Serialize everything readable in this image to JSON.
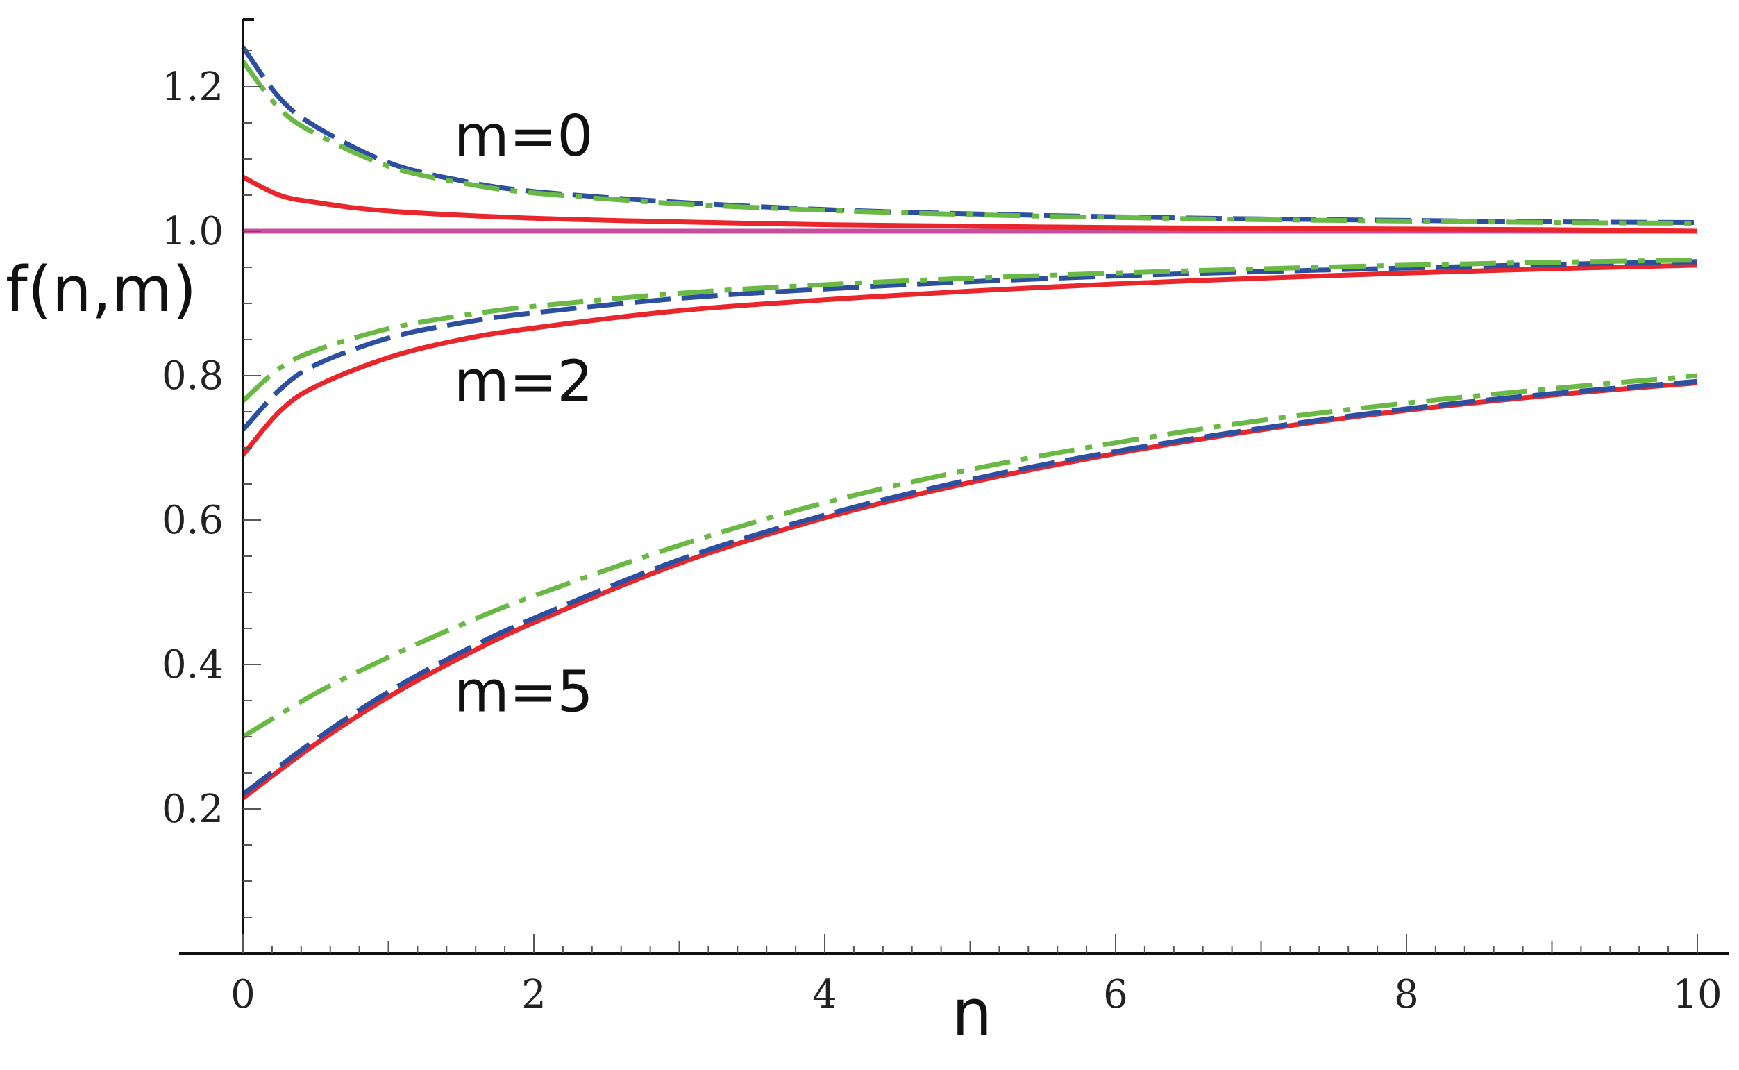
{
  "chart_data": {
    "type": "line",
    "xlabel": "n",
    "ylabel": "f(n,m)",
    "xlim": [
      0,
      10
    ],
    "ylim": [
      0,
      1.28
    ],
    "xticks": [
      "0",
      "2",
      "4",
      "6",
      "8",
      "10"
    ],
    "yticks": [
      "0.2",
      "0.4",
      "0.6",
      "0.8",
      "1.0",
      "1.2"
    ],
    "annotations": [
      {
        "text": "m=0",
        "x": 1.45,
        "y": 1.105
      },
      {
        "text": "m=2",
        "x": 1.45,
        "y": 0.765
      },
      {
        "text": "m=5",
        "x": 1.45,
        "y": 0.335
      }
    ],
    "colors": {
      "red": "#e8262b",
      "blue": "#2c4fa0",
      "green": "#6ab945",
      "magenta": "#c64f9d"
    },
    "series": [
      {
        "group": "m=0",
        "color": "#c64f9d",
        "style": "solid",
        "x": [
          0,
          10
        ],
        "y": [
          1.0,
          1.0
        ]
      },
      {
        "group": "m=0",
        "color": "#e8262b",
        "style": "solid",
        "x": [
          0,
          0.25,
          0.5,
          1,
          2,
          3,
          4,
          5,
          6,
          7,
          8,
          9,
          10
        ],
        "y": [
          1.075,
          1.05,
          1.04,
          1.028,
          1.018,
          1.013,
          1.009,
          1.007,
          1.005,
          1.004,
          1.003,
          1.002,
          1.0
        ]
      },
      {
        "group": "m=0",
        "color": "#2c4fa0",
        "style": "dashed",
        "x": [
          0,
          0.25,
          0.5,
          1,
          1.5,
          2,
          3,
          4,
          5,
          6,
          7,
          8,
          9,
          10
        ],
        "y": [
          1.255,
          1.185,
          1.145,
          1.095,
          1.07,
          1.055,
          1.04,
          1.03,
          1.024,
          1.02,
          1.017,
          1.015,
          1.013,
          1.012
        ]
      },
      {
        "group": "m=0",
        "color": "#6ab945",
        "style": "dashdot",
        "x": [
          0,
          0.25,
          0.5,
          1,
          1.5,
          2,
          3,
          4,
          5,
          6,
          7,
          8,
          9,
          10
        ],
        "y": [
          1.235,
          1.17,
          1.135,
          1.09,
          1.067,
          1.053,
          1.038,
          1.029,
          1.023,
          1.019,
          1.016,
          1.014,
          1.012,
          1.011
        ]
      },
      {
        "group": "m=2",
        "color": "#e8262b",
        "style": "solid",
        "x": [
          0,
          0.25,
          0.5,
          1,
          1.5,
          2,
          3,
          4,
          5,
          6,
          7,
          8,
          9,
          10
        ],
        "y": [
          0.69,
          0.75,
          0.785,
          0.825,
          0.85,
          0.866,
          0.89,
          0.905,
          0.917,
          0.927,
          0.935,
          0.942,
          0.948,
          0.953
        ]
      },
      {
        "group": "m=2",
        "color": "#2c4fa0",
        "style": "dashed",
        "x": [
          0,
          0.25,
          0.5,
          1,
          1.5,
          2,
          3,
          4,
          5,
          6,
          7,
          8,
          9,
          10
        ],
        "y": [
          0.725,
          0.78,
          0.815,
          0.852,
          0.873,
          0.887,
          0.907,
          0.92,
          0.93,
          0.938,
          0.944,
          0.949,
          0.954,
          0.958
        ]
      },
      {
        "group": "m=2",
        "color": "#6ab945",
        "style": "dashdot",
        "x": [
          0,
          0.25,
          0.5,
          1,
          1.5,
          2,
          3,
          4,
          5,
          6,
          7,
          8,
          9,
          10
        ],
        "y": [
          0.765,
          0.81,
          0.835,
          0.865,
          0.883,
          0.896,
          0.914,
          0.926,
          0.935,
          0.942,
          0.948,
          0.953,
          0.957,
          0.96
        ]
      },
      {
        "group": "m=5",
        "color": "#e8262b",
        "style": "solid",
        "x": [
          0,
          0.5,
          1,
          1.5,
          2,
          3,
          4,
          5,
          6,
          7,
          8,
          9,
          10
        ],
        "y": [
          0.215,
          0.29,
          0.355,
          0.41,
          0.458,
          0.54,
          0.603,
          0.652,
          0.692,
          0.725,
          0.752,
          0.773,
          0.79
        ]
      },
      {
        "group": "m=5",
        "color": "#2c4fa0",
        "style": "dashed",
        "x": [
          0,
          0.5,
          1,
          1.5,
          2,
          3,
          4,
          5,
          6,
          7,
          8,
          9,
          10
        ],
        "y": [
          0.22,
          0.296,
          0.362,
          0.417,
          0.464,
          0.545,
          0.607,
          0.656,
          0.695,
          0.727,
          0.754,
          0.775,
          0.792
        ]
      },
      {
        "group": "m=5",
        "color": "#6ab945",
        "style": "dashdot",
        "x": [
          0,
          0.5,
          1,
          1.5,
          2,
          3,
          4,
          5,
          6,
          7,
          8,
          9,
          10
        ],
        "y": [
          0.3,
          0.36,
          0.41,
          0.455,
          0.495,
          0.565,
          0.624,
          0.67,
          0.707,
          0.738,
          0.762,
          0.782,
          0.8
        ]
      }
    ]
  }
}
